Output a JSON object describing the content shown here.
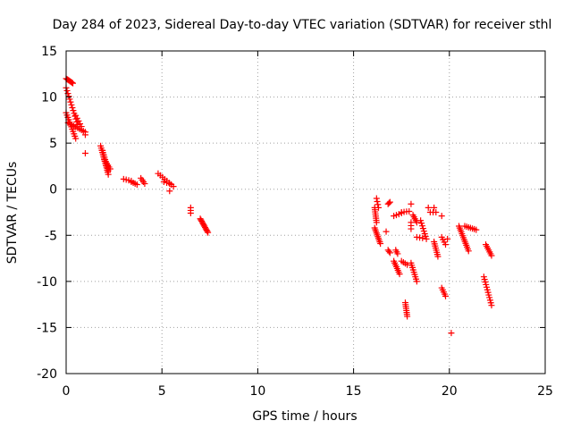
{
  "chart_data": {
    "type": "scatter",
    "title": "Day 284 of 2023, Sidereal Day-to-day VTEC variation (SDTVAR) for receiver sthl",
    "xlabel": "GPS time / hours",
    "ylabel": "SDTVAR / TECUs",
    "xlim": [
      0,
      25
    ],
    "ylim": [
      -20,
      15
    ],
    "xticks": [
      0,
      5,
      10,
      15,
      20,
      25
    ],
    "yticks": [
      -20,
      -15,
      -10,
      -5,
      0,
      5,
      10,
      15
    ],
    "grid": true,
    "marker": "+",
    "color": "#ff0000",
    "segments": [
      {
        "x0": 0.0,
        "y0": 12.0,
        "x1": 0.35,
        "y1": 11.5,
        "n": 8
      },
      {
        "x0": 0.0,
        "y0": 11.0,
        "x1": 0.6,
        "y1": 7.0,
        "n": 14
      },
      {
        "x0": 0.0,
        "y0": 8.3,
        "x1": 0.5,
        "y1": 5.5,
        "n": 12
      },
      {
        "x0": 0.1,
        "y0": 7.2,
        "x1": 1.0,
        "y1": 6.2,
        "n": 10
      },
      {
        "x0": 0.5,
        "y0": 8.0,
        "x1": 0.8,
        "y1": 6.8,
        "n": 5
      },
      {
        "x0": 1.0,
        "y0": 5.9,
        "x1": 1.0,
        "y1": 5.9,
        "n": 1
      },
      {
        "x0": 1.0,
        "y0": 3.9,
        "x1": 1.0,
        "y1": 3.9,
        "n": 1
      },
      {
        "x0": 1.8,
        "y0": 4.7,
        "x1": 2.2,
        "y1": 1.6,
        "n": 14
      },
      {
        "x0": 1.9,
        "y0": 4.2,
        "x1": 2.2,
        "y1": 2.0,
        "n": 10
      },
      {
        "x0": 2.0,
        "y0": 3.2,
        "x1": 2.3,
        "y1": 2.2,
        "n": 6
      },
      {
        "x0": 3.0,
        "y0": 1.1,
        "x1": 3.4,
        "y1": 0.9,
        "n": 4
      },
      {
        "x0": 3.4,
        "y0": 0.8,
        "x1": 3.7,
        "y1": 0.5,
        "n": 4
      },
      {
        "x0": 3.9,
        "y0": 1.2,
        "x1": 4.1,
        "y1": 0.6,
        "n": 4
      },
      {
        "x0": 4.8,
        "y0": 1.7,
        "x1": 5.6,
        "y1": 0.3,
        "n": 8
      },
      {
        "x0": 5.1,
        "y0": 0.8,
        "x1": 5.4,
        "y1": 0.6,
        "n": 3
      },
      {
        "x0": 5.4,
        "y0": -0.2,
        "x1": 5.4,
        "y1": -0.2,
        "n": 1
      },
      {
        "x0": 6.5,
        "y0": -2.0,
        "x1": 6.5,
        "y1": -2.6,
        "n": 3
      },
      {
        "x0": 7.0,
        "y0": -3.2,
        "x1": 7.4,
        "y1": -4.7,
        "n": 12
      },
      {
        "x0": 16.1,
        "y0": -2.0,
        "x1": 16.2,
        "y1": -3.6,
        "n": 8
      },
      {
        "x0": 16.2,
        "y0": -1.0,
        "x1": 16.3,
        "y1": -2.0,
        "n": 4
      },
      {
        "x0": 16.1,
        "y0": -4.2,
        "x1": 16.4,
        "y1": -5.9,
        "n": 10
      },
      {
        "x0": 16.8,
        "y0": -1.6,
        "x1": 16.9,
        "y1": -1.4,
        "n": 3
      },
      {
        "x0": 16.7,
        "y0": -4.6,
        "x1": 16.7,
        "y1": -4.6,
        "n": 1
      },
      {
        "x0": 16.8,
        "y0": -6.6,
        "x1": 16.9,
        "y1": -6.9,
        "n": 3
      },
      {
        "x0": 17.2,
        "y0": -6.6,
        "x1": 17.3,
        "y1": -7.0,
        "n": 3
      },
      {
        "x0": 17.1,
        "y0": -2.9,
        "x1": 17.5,
        "y1": -2.6,
        "n": 4
      },
      {
        "x0": 17.5,
        "y0": -2.5,
        "x1": 17.9,
        "y1": -2.4,
        "n": 4
      },
      {
        "x0": 17.1,
        "y0": -7.8,
        "x1": 17.4,
        "y1": -9.2,
        "n": 8
      },
      {
        "x0": 17.5,
        "y0": -7.8,
        "x1": 17.8,
        "y1": -8.2,
        "n": 4
      },
      {
        "x0": 17.7,
        "y0": -12.3,
        "x1": 17.8,
        "y1": -13.8,
        "n": 8
      },
      {
        "x0": 18.0,
        "y0": -1.6,
        "x1": 18.0,
        "y1": -1.6,
        "n": 1
      },
      {
        "x0": 18.0,
        "y0": -3.6,
        "x1": 18.0,
        "y1": -4.3,
        "n": 3
      },
      {
        "x0": 18.1,
        "y0": -2.8,
        "x1": 18.3,
        "y1": -3.6,
        "n": 5
      },
      {
        "x0": 18.0,
        "y0": -8.0,
        "x1": 18.3,
        "y1": -10.0,
        "n": 9
      },
      {
        "x0": 18.3,
        "y0": -5.2,
        "x1": 18.6,
        "y1": -5.3,
        "n": 3
      },
      {
        "x0": 18.5,
        "y0": -3.4,
        "x1": 18.8,
        "y1": -5.4,
        "n": 8
      },
      {
        "x0": 19.0,
        "y0": -2.5,
        "x1": 19.3,
        "y1": -2.5,
        "n": 3
      },
      {
        "x0": 18.9,
        "y0": -2.0,
        "x1": 18.9,
        "y1": -2.0,
        "n": 1
      },
      {
        "x0": 19.2,
        "y0": -2.0,
        "x1": 19.2,
        "y1": -2.0,
        "n": 1
      },
      {
        "x0": 19.2,
        "y0": -5.7,
        "x1": 19.4,
        "y1": -7.3,
        "n": 8
      },
      {
        "x0": 19.6,
        "y0": -2.9,
        "x1": 19.6,
        "y1": -2.9,
        "n": 1
      },
      {
        "x0": 19.6,
        "y0": -5.2,
        "x1": 19.8,
        "y1": -6.0,
        "n": 4
      },
      {
        "x0": 19.9,
        "y0": -5.4,
        "x1": 19.9,
        "y1": -5.4,
        "n": 1
      },
      {
        "x0": 19.6,
        "y0": -10.7,
        "x1": 19.8,
        "y1": -11.6,
        "n": 5
      },
      {
        "x0": 20.1,
        "y0": -15.6,
        "x1": 20.1,
        "y1": -15.6,
        "n": 1
      },
      {
        "x0": 20.5,
        "y0": -4.0,
        "x1": 21.0,
        "y1": -6.7,
        "n": 14
      },
      {
        "x0": 20.8,
        "y0": -4.0,
        "x1": 21.4,
        "y1": -4.4,
        "n": 7
      },
      {
        "x0": 21.8,
        "y0": -9.5,
        "x1": 22.2,
        "y1": -12.6,
        "n": 12
      },
      {
        "x0": 21.9,
        "y0": -6.0,
        "x1": 22.2,
        "y1": -7.2,
        "n": 7
      }
    ]
  }
}
